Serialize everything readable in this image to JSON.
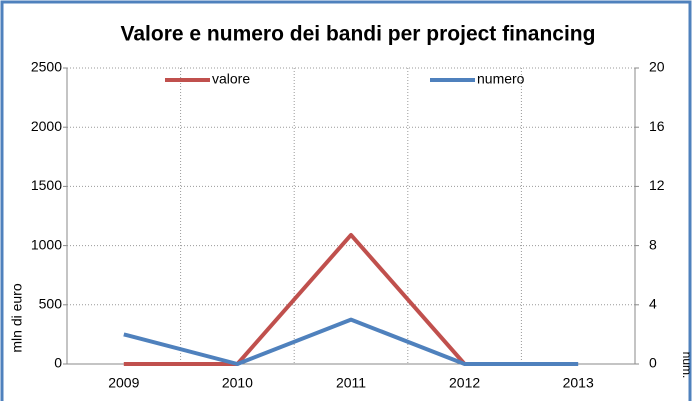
{
  "chart_data": {
    "type": "line",
    "title": "Valore e numero dei bandi  per project financing",
    "y_label": "mln di euro",
    "y2_label": "num.",
    "categories": [
      "2009",
      "2010",
      "2011",
      "2012",
      "2013"
    ],
    "series": [
      {
        "name": "valore",
        "color": "#c0504d",
        "values": [
          0,
          0,
          1090,
          0,
          null
        ]
      },
      {
        "name": "numero",
        "color": "#4f81bd",
        "axis": "y2",
        "values": [
          2,
          0,
          3,
          0,
          0
        ]
      }
    ],
    "ylim": [
      0,
      2500
    ],
    "yticks": [
      0,
      500,
      1000,
      1500,
      2000,
      2500
    ],
    "y2lim": [
      0,
      20
    ],
    "y2ticks": [
      0,
      4,
      8,
      12,
      16,
      20
    ],
    "grid": true,
    "legend": "top"
  }
}
